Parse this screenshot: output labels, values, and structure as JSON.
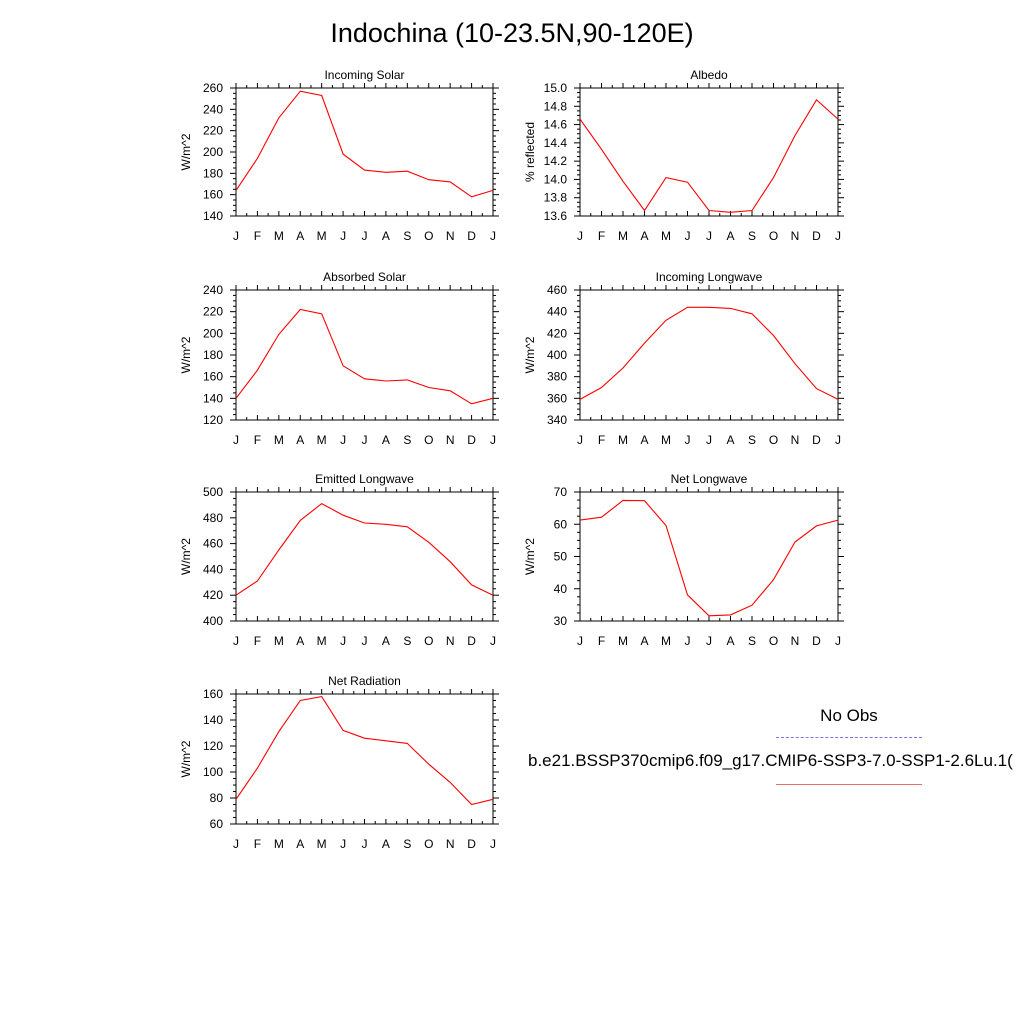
{
  "page": {
    "title": "Indochina (10-23.5N,90-120E)"
  },
  "legend": {
    "obs_label": "No Obs",
    "case_label": "b.e21.BSSP370cmip6.f09_g17.CMIP6-SSP3-7.0-SSP1-2.6Lu.1(",
    "obs_color": "#7777ee",
    "case_color": "#ff0000"
  },
  "chart_data": [
    {
      "type": "line",
      "title": "Incoming Solar",
      "ylabel": "W/m^2",
      "x": [
        "J",
        "F",
        "M",
        "A",
        "M",
        "J",
        "J",
        "A",
        "S",
        "O",
        "N",
        "D",
        "J"
      ],
      "ylim": [
        140,
        260
      ],
      "yticks": [
        140,
        160,
        180,
        200,
        220,
        240,
        260
      ],
      "series": [
        {
          "color": "#ff0000",
          "values": [
            164,
            194,
            232,
            257,
            253,
            198,
            183,
            181,
            182,
            174,
            172,
            158,
            164
          ]
        }
      ]
    },
    {
      "type": "line",
      "title": "Albedo",
      "ylabel": "% reflected",
      "x": [
        "J",
        "F",
        "M",
        "A",
        "M",
        "J",
        "J",
        "A",
        "S",
        "O",
        "N",
        "D",
        "J"
      ],
      "ylim": [
        13.6,
        15.0
      ],
      "yticks": [
        "13.6",
        "13.8",
        "14.0",
        "14.2",
        "14.4",
        "14.6",
        "14.8",
        "15.0"
      ],
      "series": [
        {
          "color": "#ff0000",
          "values": [
            14.66,
            14.33,
            13.98,
            13.66,
            14.02,
            13.97,
            13.66,
            13.64,
            13.66,
            14.02,
            14.48,
            14.87,
            14.66
          ]
        }
      ]
    },
    {
      "type": "line",
      "title": "Absorbed Solar",
      "ylabel": "W/m^2",
      "x": [
        "J",
        "F",
        "M",
        "A",
        "M",
        "J",
        "J",
        "A",
        "S",
        "O",
        "N",
        "D",
        "J"
      ],
      "ylim": [
        120,
        240
      ],
      "yticks": [
        120,
        140,
        160,
        180,
        200,
        220,
        240
      ],
      "series": [
        {
          "color": "#ff0000",
          "values": [
            140,
            166,
            199,
            222,
            218,
            170,
            158,
            156,
            157,
            150,
            147,
            135,
            140
          ]
        }
      ]
    },
    {
      "type": "line",
      "title": "Incoming Longwave",
      "ylabel": "W/m^2",
      "x": [
        "J",
        "F",
        "M",
        "A",
        "M",
        "J",
        "J",
        "A",
        "S",
        "O",
        "N",
        "D",
        "J"
      ],
      "ylim": [
        340,
        460
      ],
      "yticks": [
        340,
        360,
        380,
        400,
        420,
        440,
        460
      ],
      "series": [
        {
          "color": "#ff0000",
          "values": [
            359,
            370,
            388,
            411,
            432,
            444,
            444,
            443,
            438,
            418,
            392,
            369,
            359
          ]
        }
      ]
    },
    {
      "type": "line",
      "title": "Emitted Longwave",
      "ylabel": "W/m^2",
      "x": [
        "J",
        "F",
        "M",
        "A",
        "M",
        "J",
        "J",
        "A",
        "S",
        "O",
        "N",
        "D",
        "J"
      ],
      "ylim": [
        400,
        500
      ],
      "yticks": [
        400,
        420,
        440,
        460,
        480,
        500
      ],
      "series": [
        {
          "color": "#ff0000",
          "values": [
            420,
            431,
            455,
            478,
            491,
            482,
            476,
            475,
            473,
            461,
            446,
            428,
            420
          ]
        }
      ]
    },
    {
      "type": "line",
      "title": "Net Longwave",
      "ylabel": "W/m^2",
      "x": [
        "J",
        "F",
        "M",
        "A",
        "M",
        "J",
        "J",
        "A",
        "S",
        "O",
        "N",
        "D",
        "J"
      ],
      "ylim": [
        30,
        70
      ],
      "yticks": [
        30,
        40,
        50,
        60,
        70
      ],
      "series": [
        {
          "color": "#ff0000",
          "values": [
            61.3,
            62.2,
            67.4,
            67.3,
            59.6,
            38.1,
            31.6,
            31.9,
            34.9,
            42.8,
            54.5,
            59.5,
            61.3
          ]
        }
      ]
    },
    {
      "type": "line",
      "title": "Net Radiation",
      "ylabel": "W/m^2",
      "x": [
        "J",
        "F",
        "M",
        "A",
        "M",
        "J",
        "J",
        "A",
        "S",
        "O",
        "N",
        "D",
        "J"
      ],
      "ylim": [
        60,
        160
      ],
      "yticks": [
        60,
        80,
        100,
        120,
        140,
        160
      ],
      "series": [
        {
          "color": "#ff0000",
          "values": [
            79,
            103,
            131,
            155,
            158,
            132,
            126,
            124,
            122,
            106,
            92,
            75,
            79
          ]
        }
      ]
    }
  ]
}
